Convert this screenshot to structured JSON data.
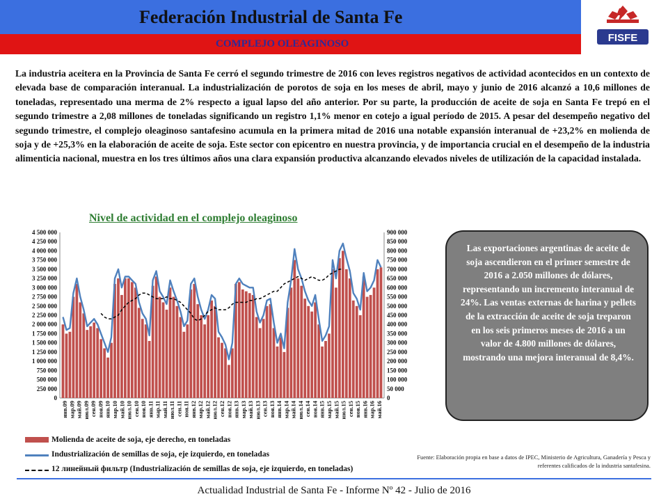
{
  "header": {
    "title": "Federación  Industrial de Santa Fe",
    "subtitle": "COMPLEJO OLEAGINOSO",
    "logo_text": "FISFE",
    "blue": "#3b6fe0",
    "red": "#e01414"
  },
  "body_text": "La industria aceitera en la Provincia de Santa Fe cerró el segundo trimestre de 2016 con leves registros negativos de actividad acontecidos en un contexto de elevada base de comparación interanual. La industrialización de porotos de soja en los meses de abril, mayo y junio de 2016 alcanzó a 10,6 millones de toneladas, representado una merma de 2% respecto a igual lapso del año anterior. Por su parte, la producción de aceite de soja en Santa Fe trepó en el segundo trimestre a 2,08 millones de toneladas significando un registro 1,1% menor en cotejo a igual período de 2015. A pesar del desempeño negativo del segundo trimestre, el complejo oleaginoso santafesino acumula en la primera mitad de 2016 una notable expansión interanual de +23,2% en molienda de soja y de +25,3% en la elaboración de aceite de soja. Este sector con epicentro en nuestra provincia, y de importancia crucial en el desempeño de la industria alimenticia nacional, muestra en los tres últimos años una clara expansión productiva alcanzando elevados niveles de utilización de la capacidad instalada.",
  "callout": "Las exportaciones argentinas de aceite de soja ascendieron en el primer semestre de 2016 a 2.050 millones de dólares, representando un incremento interanual de 24%. Las ventas externas de harina y pellets de la extracción de aceite de soja treparon en los seis primeros meses de 2016 a un valor de 4.800 millones de dólares, mostrando una mejora interanual de 8,4%.",
  "source": "Fuente: Elaboración propia en base a datos de IPEC, Ministerio de Agricultura, Ganadería y Pesca y referentes calificados de la industria santafesina.",
  "footer": "Actualidad Industrial de Santa Fe - Informe Nº 42 - Julio de 2016",
  "chart_data": {
    "type": "bar",
    "title": "Nivel de actividad en el complejo oleaginoso",
    "left_axis": {
      "min": 0,
      "max": 4500000,
      "ticks": [
        "0",
        "250 000",
        "500 000",
        "750 000",
        "1 000 000",
        "1 250 000",
        "1 500 000",
        "1 750 000",
        "2 000 000",
        "2 250 000",
        "2 500 000",
        "2 750 000",
        "3 000 000",
        "3 250 000",
        "3 500 000",
        "3 750 000",
        "4 000 000",
        "4 250 000",
        "4 500 000"
      ]
    },
    "right_axis": {
      "min": 0,
      "max": 900000,
      "ticks": [
        "0",
        "50 000",
        "100 000",
        "150 000",
        "200 000",
        "250 000",
        "300 000",
        "350 000",
        "400 000",
        "450 000",
        "500 000",
        "550 000",
        "600 000",
        "650 000",
        "700 000",
        "750 000",
        "800 000",
        "850 000",
        "900 000"
      ]
    },
    "x_labels": [
      "янв.09",
      "мар.09",
      "май.09",
      "июл.09",
      "сен.09",
      "ноя.09",
      "янв.10",
      "мар.10",
      "май.10",
      "июл.10",
      "сен.10",
      "ноя.10",
      "янв.11",
      "мар.11",
      "май.11",
      "июл.11",
      "сен.11",
      "ноя.11",
      "янв.12",
      "мар.12",
      "май.12",
      "июл.12",
      "сен.12",
      "ноя.12",
      "янв.13",
      "мар.13",
      "май.13",
      "июл.13",
      "сен.13",
      "ноя.13",
      "янв.14",
      "мар.14",
      "май.14",
      "июл.14",
      "сен.14",
      "ноя.14",
      "янв.15",
      "мар.15",
      "май.15",
      "июл.15",
      "сен.15",
      "ноя.15",
      "янв.16",
      "мар.16",
      "май.16"
    ],
    "series": [
      {
        "name": "Molienda de aceite de soja, eje derecho, en toneladas",
        "kind": "bar",
        "axis": "right",
        "color": "#c0504d",
        "values": [
          400000,
          350000,
          360000,
          550000,
          620000,
          520000,
          460000,
          370000,
          390000,
          410000,
          380000,
          320000,
          270000,
          220000,
          300000,
          620000,
          650000,
          560000,
          650000,
          650000,
          630000,
          600000,
          490000,
          430000,
          400000,
          310000,
          610000,
          660000,
          550000,
          520000,
          480000,
          600000,
          550000,
          500000,
          440000,
          360000,
          400000,
          590000,
          620000,
          510000,
          450000,
          400000,
          450000,
          530000,
          500000,
          330000,
          300000,
          270000,
          180000,
          270000,
          620000,
          630000,
          590000,
          580000,
          570000,
          560000,
          440000,
          380000,
          430000,
          500000,
          510000,
          380000,
          280000,
          330000,
          250000,
          490000,
          600000,
          750000,
          650000,
          610000,
          540000,
          500000,
          470000,
          520000,
          400000,
          280000,
          310000,
          350000,
          700000,
          600000,
          760000,
          800000,
          700000,
          650000,
          530000,
          500000,
          450000,
          660000,
          550000,
          560000,
          600000,
          700000,
          710000
        ]
      },
      {
        "name": "Industrialización de semillas de soja, eje izquierdo, en toneladas",
        "kind": "line",
        "axis": "left",
        "color": "#4f81bd",
        "values": [
          2200000,
          1850000,
          1900000,
          2850000,
          3250000,
          2750000,
          2400000,
          1950000,
          2050000,
          2150000,
          2000000,
          1750000,
          1500000,
          1250000,
          1650000,
          3250000,
          3500000,
          3000000,
          3300000,
          3300000,
          3200000,
          3100000,
          2600000,
          2300000,
          2150000,
          1700000,
          3200000,
          3450000,
          2900000,
          2750000,
          2550000,
          3200000,
          2900000,
          2650000,
          2350000,
          1950000,
          2100000,
          3100000,
          3250000,
          2750000,
          2400000,
          2150000,
          2400000,
          2800000,
          2700000,
          1800000,
          1650000,
          1450000,
          1050000,
          1500000,
          3100000,
          3250000,
          3100000,
          3050000,
          3000000,
          3000000,
          2350000,
          2050000,
          2250000,
          2650000,
          2700000,
          2050000,
          1500000,
          1750000,
          1350000,
          2600000,
          3200000,
          4050000,
          3500000,
          3250000,
          2900000,
          2650000,
          2500000,
          2800000,
          2150000,
          1550000,
          1700000,
          1950000,
          3750000,
          3250000,
          4000000,
          4200000,
          3800000,
          3450000,
          2850000,
          2700000,
          2400000,
          3400000,
          2900000,
          3000000,
          3200000,
          3750000,
          3550000
        ]
      },
      {
        "name": "12 линейный фильтр (Industrialización de semillas de soja, eje izquierdo, en toneladas)",
        "kind": "dashed",
        "axis": "left",
        "color": "#000000",
        "start": 11,
        "values": [
          2300000,
          2200000,
          2150000,
          2150000,
          2200000,
          2250000,
          2400000,
          2500000,
          2600000,
          2650000,
          2700000,
          2800000,
          2850000,
          2850000,
          2800000,
          2750000,
          2700000,
          2700000,
          2700000,
          2750000,
          2700000,
          2700000,
          2650000,
          2600000,
          2500000,
          2400000,
          2300000,
          2150000,
          2100000,
          2150000,
          2250000,
          2350000,
          2400000,
          2450000,
          2400000,
          2400000,
          2400000,
          2450000,
          2550000,
          2600000,
          2600000,
          2600000,
          2600000,
          2650000,
          2650000,
          2700000,
          2700000,
          2750000,
          2800000,
          2850000,
          2900000,
          2900000,
          3000000,
          3100000,
          3150000,
          3200000,
          3250000,
          3300000,
          3250000,
          3200000,
          3250000,
          3300000,
          3250000,
          3200000,
          3200000,
          3250000,
          3350000,
          3400000,
          3450000,
          3500000,
          3500000
        ]
      }
    ]
  }
}
